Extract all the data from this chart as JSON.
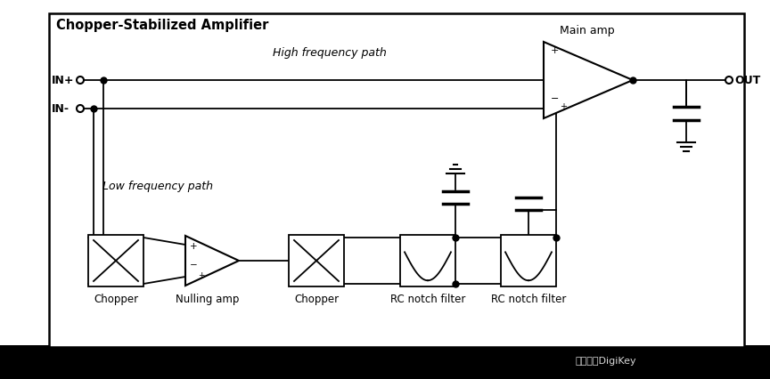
{
  "title": "Chopper-Stabilized Amplifier",
  "bg_white": "#ffffff",
  "bg_gray": "#c8c8c8",
  "bg_black": "#000000",
  "border_color": "#000000",
  "text_color": "#000000",
  "figsize": [
    8.64,
    4.26
  ],
  "dpi": 100,
  "labels": {
    "title": "Chopper-Stabilized Amplifier",
    "high_freq": "High frequency path",
    "low_freq": "Low frequency path",
    "in_plus": "IN+",
    "in_minus": "IN-",
    "out": "OUT",
    "main_amp": "Main amp",
    "chopper1": "Chopper",
    "nulling_amp": "Nulling amp",
    "chopper2": "Chopper",
    "rc_notch1": "RC notch filter",
    "rc_notch2": "RC notch filter"
  },
  "watermark": "得捷电子DigiKey"
}
